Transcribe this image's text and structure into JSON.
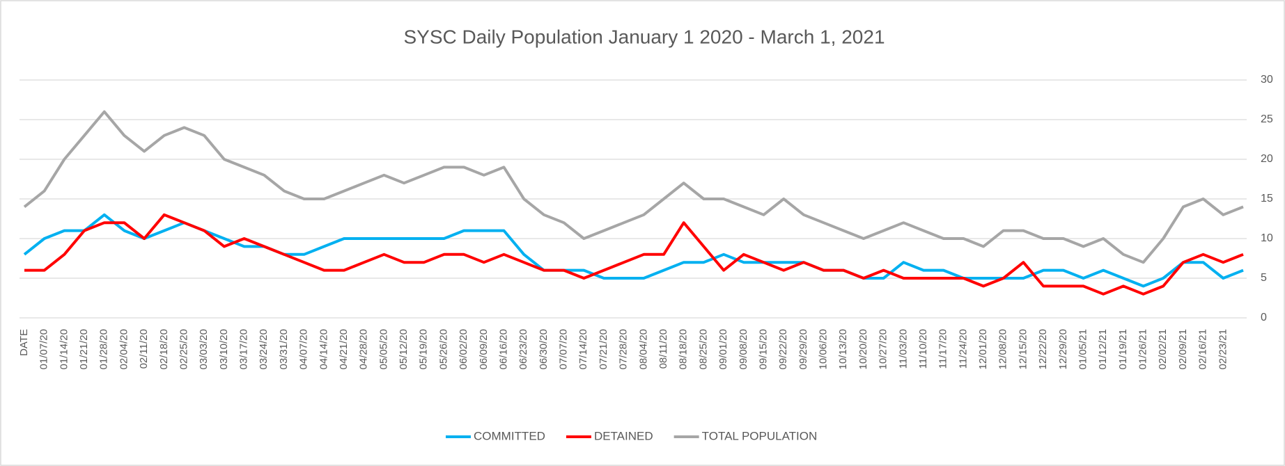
{
  "chart_data": {
    "type": "line",
    "title": "SYSC Daily Population January 1 2020 - March 1, 2021",
    "categories": [
      "DATE",
      "01/07/20",
      "01/14/20",
      "01/21/20",
      "01/28/20",
      "02/04/20",
      "02/11/20",
      "02/18/20",
      "02/25/20",
      "03/03/20",
      "03/10/20",
      "03/17/20",
      "03/24/20",
      "03/31/20",
      "04/07/20",
      "04/14/20",
      "04/21/20",
      "04/28/20",
      "05/05/20",
      "05/12/20",
      "05/19/20",
      "05/26/20",
      "06/02/20",
      "06/09/20",
      "06/16/20",
      "06/23/20",
      "06/30/20",
      "07/07/20",
      "07/14/20",
      "07/21/20",
      "07/28/20",
      "08/04/20",
      "08/11/20",
      "08/18/20",
      "08/25/20",
      "09/01/20",
      "09/08/20",
      "09/15/20",
      "09/22/20",
      "09/29/20",
      "10/06/20",
      "10/13/20",
      "10/20/20",
      "10/27/20",
      "11/03/20",
      "11/10/20",
      "11/17/20",
      "11/24/20",
      "12/01/20",
      "12/08/20",
      "12/15/20",
      "12/22/20",
      "12/29/20",
      "01/05/21",
      "01/12/21",
      "01/19/21",
      "01/26/21",
      "02/02/21",
      "02/09/21",
      "02/16/21",
      "02/23/21",
      null
    ],
    "series": [
      {
        "name": "TOTAL POPULATION",
        "color": "#a6a6a6",
        "values": [
          14,
          16,
          20,
          23,
          26,
          23,
          21,
          23,
          24,
          23,
          20,
          19,
          18,
          16,
          15,
          15,
          16,
          17,
          18,
          17,
          18,
          19,
          19,
          18,
          19,
          15,
          13,
          12,
          10,
          11,
          12,
          13,
          15,
          17,
          15,
          15,
          14,
          13,
          15,
          13,
          12,
          11,
          10,
          11,
          12,
          11,
          10,
          10,
          9,
          11,
          11,
          10,
          10,
          9,
          10,
          8,
          7,
          10,
          14,
          15,
          13,
          14
        ]
      },
      {
        "name": "COMMITTED",
        "color": "#00b0f0",
        "values": [
          8,
          10,
          11,
          11,
          13,
          11,
          10,
          11,
          12,
          11,
          10,
          9,
          9,
          8,
          8,
          9,
          10,
          10,
          10,
          10,
          10,
          10,
          11,
          11,
          11,
          8,
          6,
          6,
          6,
          5,
          5,
          5,
          6,
          7,
          7,
          8,
          7,
          7,
          7,
          7,
          6,
          6,
          5,
          5,
          7,
          6,
          6,
          5,
          5,
          5,
          5,
          6,
          6,
          5,
          6,
          5,
          4,
          5,
          7,
          7,
          5,
          6
        ]
      },
      {
        "name": "DETAINED",
        "color": "#ff0000",
        "values": [
          6,
          6,
          8,
          11,
          12,
          12,
          10,
          13,
          12,
          11,
          9,
          10,
          9,
          8,
          7,
          6,
          6,
          7,
          8,
          7,
          7,
          8,
          8,
          7,
          8,
          7,
          6,
          6,
          5,
          6,
          7,
          8,
          8,
          12,
          9,
          6,
          8,
          7,
          6,
          7,
          6,
          6,
          5,
          6,
          5,
          5,
          5,
          5,
          4,
          5,
          7,
          4,
          4,
          4,
          3,
          4,
          3,
          4,
          7,
          8,
          7,
          8
        ]
      }
    ],
    "legend_order": [
      "COMMITTED",
      "DETAINED",
      "TOTAL POPULATION"
    ],
    "ylim": [
      0,
      30
    ],
    "yticks": [
      0,
      5,
      10,
      15,
      20,
      25,
      30
    ],
    "grid": true
  }
}
